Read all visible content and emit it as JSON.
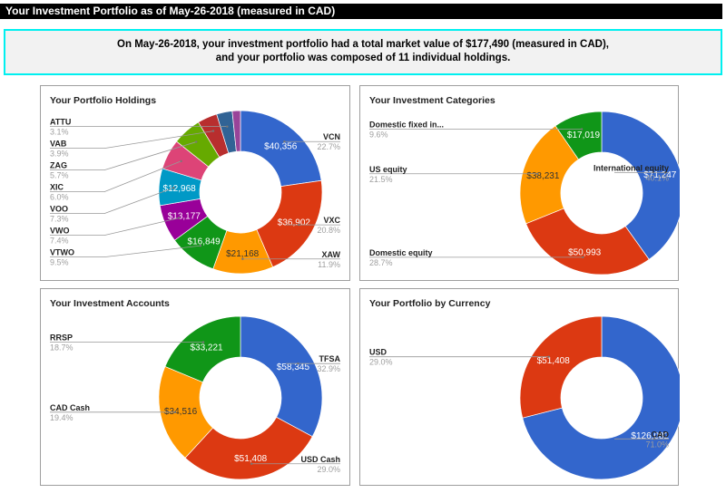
{
  "header": {
    "title": "Your Investment Portfolio as of May-26-2018 (measured in CAD)"
  },
  "summary": {
    "line1": "On May-26-2018, your investment portfolio had a total market value of $177,490 (measured in CAD),",
    "line2": "and your portfolio was composed of 11 individual holdings."
  },
  "colors": {
    "blue": "#3366cc",
    "red": "#dc3912",
    "orange": "#ff9900",
    "green": "#109618",
    "purple": "#990099",
    "teal": "#0099c6",
    "pink": "#dd4477",
    "lime": "#66aa00",
    "darkred": "#b82e2e",
    "slate": "#316395",
    "violet": "#994499"
  },
  "chart_data": [
    {
      "id": "holdings",
      "type": "pie",
      "donut": true,
      "title": "Your Portfolio Holdings",
      "slices": [
        {
          "name": "VCN",
          "value": 40356,
          "value_label": "$40,356",
          "pct": "22.7%",
          "color": "#3366cc",
          "label_side": "right"
        },
        {
          "name": "VXC",
          "value": 36902,
          "value_label": "$36,902",
          "pct": "20.8%",
          "color": "#dc3912",
          "label_side": "right"
        },
        {
          "name": "XAW",
          "value": 21168,
          "value_label": "$21,168",
          "pct": "11.9%",
          "color": "#ff9900",
          "label_side": "right"
        },
        {
          "name": "VTWO",
          "value": 16849,
          "value_label": "$16,849",
          "pct": "9.5%",
          "color": "#109618",
          "label_side": "left"
        },
        {
          "name": "VWO",
          "value": 13177,
          "value_label": "$13,177",
          "pct": "7.4%",
          "color": "#990099",
          "label_side": "left"
        },
        {
          "name": "VOO",
          "value": 12968,
          "value_label": "$12,968",
          "pct": "7.3%",
          "color": "#0099c6",
          "label_side": "left"
        },
        {
          "name": "XIC",
          "value": 10650,
          "value_label": "",
          "pct": "6.0%",
          "color": "#dd4477",
          "label_side": "left"
        },
        {
          "name": "ZAG",
          "value": 10117,
          "value_label": "",
          "pct": "5.7%",
          "color": "#66aa00",
          "label_side": "left"
        },
        {
          "name": "VAB",
          "value": 6922,
          "value_label": "",
          "pct": "3.9%",
          "color": "#b82e2e",
          "label_side": "left"
        },
        {
          "name": "ATTU",
          "value": 5502,
          "value_label": "",
          "pct": "3.1%",
          "color": "#316395",
          "label_side": "left"
        },
        {
          "name": "",
          "value": 2879,
          "value_label": "",
          "pct": "",
          "color": "#994499",
          "label_side": "none"
        }
      ]
    },
    {
      "id": "categories",
      "type": "pie",
      "donut": true,
      "title": "Your Investment Categories",
      "slices": [
        {
          "name": "International equity",
          "value": 71247,
          "value_label": "$71,247",
          "pct": "40.1%",
          "color": "#3366cc",
          "label_side": "right"
        },
        {
          "name": "Domestic equity",
          "value": 50993,
          "value_label": "$50,993",
          "pct": "28.7%",
          "color": "#dc3912",
          "label_side": "left"
        },
        {
          "name": "US equity",
          "value": 38231,
          "value_label": "$38,231",
          "pct": "21.5%",
          "color": "#ff9900",
          "label_side": "left"
        },
        {
          "name": "Domestic fixed in...",
          "value": 17019,
          "value_label": "$17,019",
          "pct": "9.6%",
          "color": "#109618",
          "label_side": "left"
        }
      ]
    },
    {
      "id": "accounts",
      "type": "pie",
      "donut": true,
      "title": "Your Investment Accounts",
      "slices": [
        {
          "name": "TFSA",
          "value": 58345,
          "value_label": "$58,345",
          "pct": "32.9%",
          "color": "#3366cc",
          "label_side": "right"
        },
        {
          "name": "USD Cash",
          "value": 51408,
          "value_label": "$51,408",
          "pct": "29.0%",
          "color": "#dc3912",
          "label_side": "right"
        },
        {
          "name": "CAD Cash",
          "value": 34516,
          "value_label": "$34,516",
          "pct": "19.4%",
          "color": "#ff9900",
          "label_side": "left"
        },
        {
          "name": "RRSP",
          "value": 33221,
          "value_label": "$33,221",
          "pct": "18.7%",
          "color": "#109618",
          "label_side": "left"
        }
      ]
    },
    {
      "id": "currency",
      "type": "pie",
      "donut": true,
      "title": "Your Portfolio by Currency",
      "slices": [
        {
          "name": "CAD",
          "value": 126082,
          "value_label": "$126,082",
          "pct": "71.0%",
          "color": "#3366cc",
          "label_side": "right"
        },
        {
          "name": "USD",
          "value": 51408,
          "value_label": "$51,408",
          "pct": "29.0%",
          "color": "#dc3912",
          "label_side": "left"
        }
      ]
    }
  ]
}
